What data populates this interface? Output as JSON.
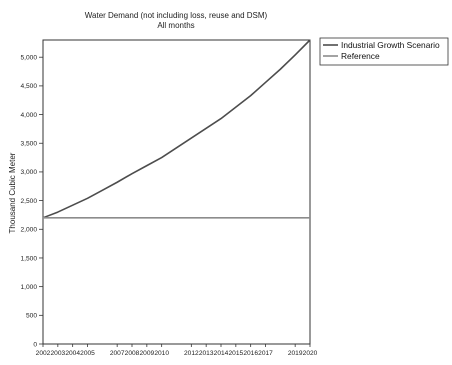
{
  "chart_data": {
    "type": "line",
    "title": "Water Demand (not including loss, reuse and DSM)",
    "subtitle": "All months",
    "xlabel": "",
    "ylabel": "Thousand Cubic Meter",
    "x": [
      2002,
      2003,
      2004,
      2005,
      2006,
      2007,
      2008,
      2009,
      2010,
      2011,
      2012,
      2013,
      2014,
      2015,
      2016,
      2017,
      2018,
      2019,
      2020
    ],
    "xtick_labels": [
      "2002",
      "2003",
      "2004",
      "2005",
      "2007",
      "2008",
      "2009",
      "2010",
      "2012",
      "2013",
      "2014",
      "2015",
      "2016",
      "2017",
      "2019",
      "2020"
    ],
    "ylim": [
      0,
      5300
    ],
    "yticks": [
      0,
      500,
      1000,
      1500,
      2000,
      2500,
      3000,
      3500,
      4000,
      4500,
      5000
    ],
    "ytick_labels": [
      "0",
      "500",
      "1,000",
      "1,500",
      "2,000",
      "2,500",
      "3,000",
      "3,500",
      "4,000",
      "4,500",
      "5,000"
    ],
    "grid": false,
    "legend_position": "top-right",
    "series": [
      {
        "name": "Industrial Growth Scenario",
        "color": "#4d4d4d",
        "values": [
          2200,
          2300,
          2420,
          2540,
          2680,
          2820,
          2970,
          3110,
          3250,
          3420,
          3590,
          3760,
          3930,
          4130,
          4330,
          4560,
          4790,
          5040,
          5300
        ]
      },
      {
        "name": "Reference",
        "color": "#8c8c8c",
        "values": [
          2200,
          2200,
          2200,
          2200,
          2200,
          2200,
          2200,
          2200,
          2200,
          2200,
          2200,
          2200,
          2200,
          2200,
          2200,
          2200,
          2200,
          2200,
          2200
        ]
      }
    ]
  }
}
